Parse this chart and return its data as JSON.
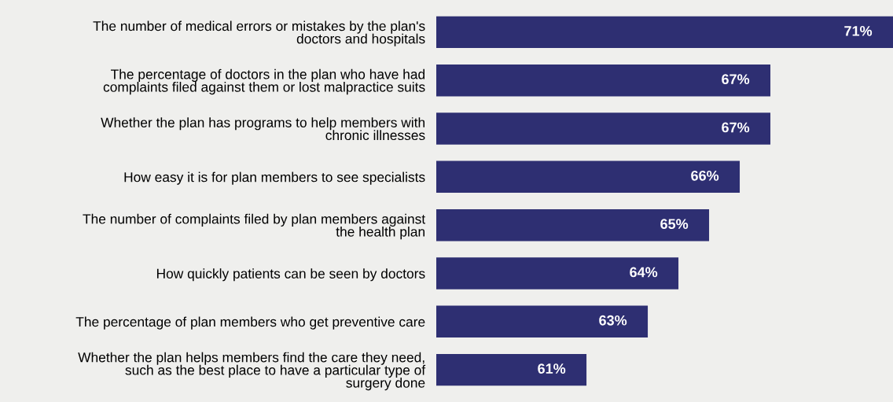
{
  "chart_data": {
    "type": "bar",
    "orientation": "horizontal",
    "categories": [
      "The number of medical errors or mistakes by the plan's\ndoctors and hospitals",
      "The percentage of doctors in the plan who have had\ncomplaints filed against them or lost malpractice suits",
      "Whether the plan has programs to help members with\nchronic illnesses",
      "How easy it is for plan members to see specialists",
      "The number of complaints filed by plan members against\nthe health plan",
      "How quickly patients can be seen by doctors",
      "The percentage of plan members who get preventive care",
      "Whether the plan helps members find the care they need,\nsuch as the best place to have a particular type of\nsurgery done"
    ],
    "values": [
      71,
      67,
      67,
      66,
      65,
      64,
      63,
      61
    ],
    "value_labels": [
      "71%",
      "67%",
      "67%",
      "66%",
      "65%",
      "64%",
      "63%",
      "61%"
    ],
    "color": "#2e2f72",
    "xlim": [
      56.1,
      71
    ],
    "tick_labels": "y",
    "grid": false,
    "legend": false
  }
}
